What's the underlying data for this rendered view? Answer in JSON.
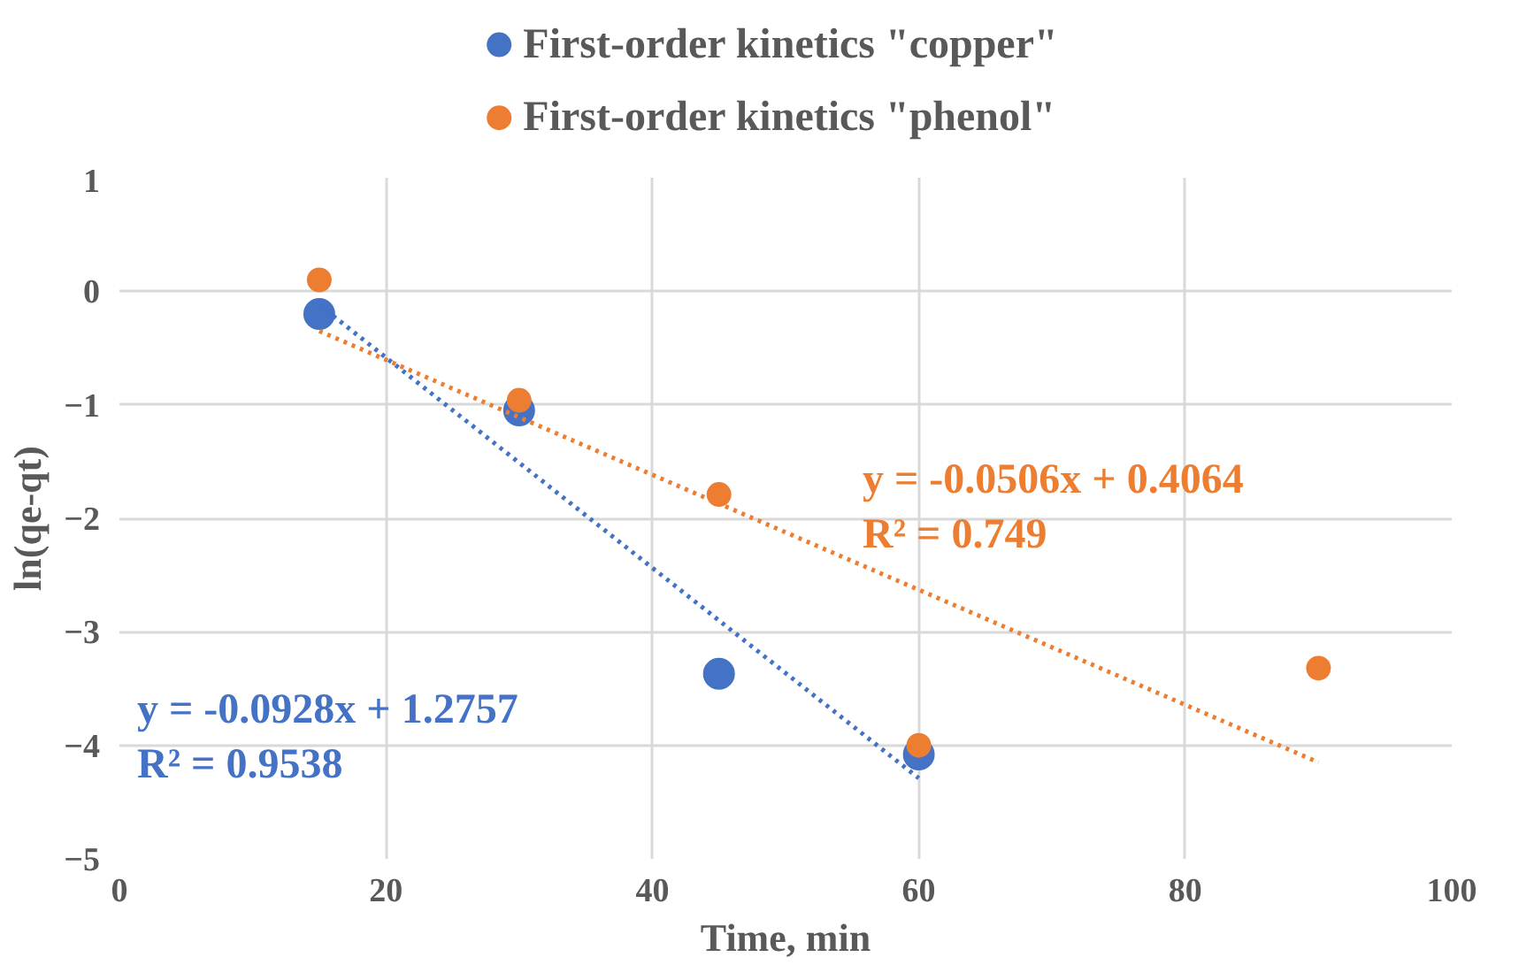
{
  "chart_data": {
    "type": "scatter",
    "xlabel": "Time, min",
    "ylabel": "ln(qe-qt)",
    "xlim": [
      0,
      100
    ],
    "ylim": [
      -5,
      1
    ],
    "xticks": [
      0,
      20,
      40,
      60,
      80,
      100
    ],
    "yticks": [
      1,
      0,
      -1,
      -2,
      -3,
      -4,
      -5
    ],
    "grid": true,
    "legend": "top",
    "marker": "circle",
    "series": [
      {
        "name": "First-order kinetics \"copper\"",
        "color": "#4472c4",
        "x": [
          15,
          30,
          45,
          60
        ],
        "values": [
          -0.2,
          -1.05,
          -3.37,
          -4.08
        ]
      },
      {
        "name": "First-order kinetics \"phenol\"",
        "color": "#ed7d31",
        "x": [
          15,
          30,
          45,
          60,
          90
        ],
        "values": [
          0.1,
          -0.96,
          -1.79,
          -4.0,
          -3.32
        ]
      },
      {
        "type": "line",
        "line_style": "dotted",
        "marker": "none",
        "color": "#4472c4",
        "x": [
          15,
          60
        ],
        "values": [
          -0.12,
          -4.29
        ]
      },
      {
        "type": "line",
        "line_style": "dotted",
        "marker": "none",
        "color": "#ed7d31",
        "x": [
          15,
          90
        ],
        "values": [
          -0.35,
          -4.15
        ]
      }
    ],
    "annotations": [
      "y = -0.0928x + 1.2757\nR² = 0.9538",
      "y = -0.0506x + 0.4064\nR² = 0.749"
    ]
  }
}
